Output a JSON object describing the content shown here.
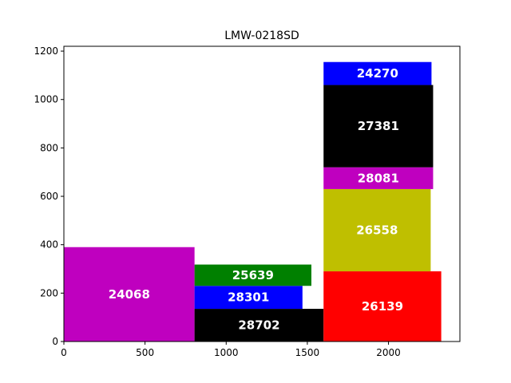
{
  "chart_data": {
    "type": "bar",
    "title": "LMW-0218SD",
    "xlabel": "",
    "ylabel": "",
    "xlim": [
      0,
      2440
    ],
    "ylim": [
      0,
      1220
    ],
    "grid": false,
    "x_ticks": [
      0,
      500,
      1000,
      1500,
      2000
    ],
    "y_ticks": [
      0,
      200,
      400,
      600,
      800,
      1000,
      1200
    ],
    "rects": [
      {
        "label": "24068",
        "x": 0,
        "y": 0,
        "width": 805,
        "height": 390,
        "color": "#bf00bf"
      },
      {
        "label": "28702",
        "x": 805,
        "y": 0,
        "width": 795,
        "height": 135,
        "color": "#000000"
      },
      {
        "label": "28301",
        "x": 805,
        "y": 135,
        "width": 665,
        "height": 95,
        "color": "#0000ff"
      },
      {
        "label": "25639",
        "x": 805,
        "y": 230,
        "width": 720,
        "height": 88,
        "color": "#008000"
      },
      {
        "label": "26139",
        "x": 1600,
        "y": 0,
        "width": 725,
        "height": 290,
        "color": "#ff0000"
      },
      {
        "label": "26558",
        "x": 1600,
        "y": 290,
        "width": 660,
        "height": 340,
        "color": "#bfbf00"
      },
      {
        "label": "28081",
        "x": 1600,
        "y": 630,
        "width": 675,
        "height": 90,
        "color": "#bf00bf"
      },
      {
        "label": "27381",
        "x": 1600,
        "y": 720,
        "width": 675,
        "height": 340,
        "color": "#000000"
      },
      {
        "label": "24270",
        "x": 1600,
        "y": 1060,
        "width": 665,
        "height": 95,
        "color": "#0000ff"
      }
    ]
  }
}
